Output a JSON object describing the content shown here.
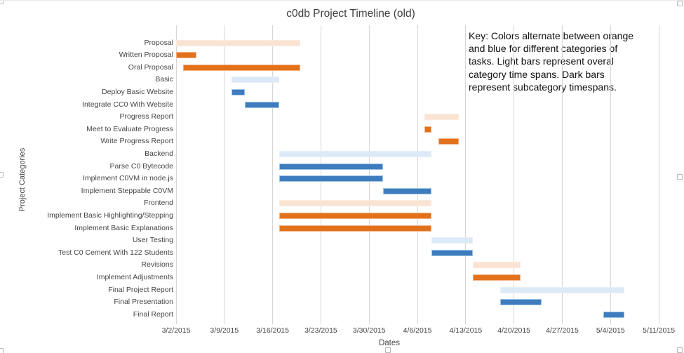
{
  "chart_data": {
    "type": "bar",
    "subtype": "gantt",
    "title": "c0db Project Timeline (old)",
    "xlabel": "Dates",
    "ylabel": "Project Categories",
    "annotation": "Key: Colors alternate between orange\nand blue for different categories of\ntasks. Light bars represent overal\ncategory time spans. Dark bars\nrepresent subcategory timespans.",
    "x_ticks": [
      "3/2/2015",
      "3/9/2015",
      "3/16/2015",
      "3/23/2015",
      "3/30/2015",
      "4/6/2015",
      "4/13/2015",
      "4/20/2015",
      "4/27/2015",
      "5/4/2015",
      "5/11/2015"
    ],
    "x_range": [
      "3/2/2015",
      "5/11/2015"
    ],
    "grid": "vertical-on",
    "legend_position": "none",
    "colors": {
      "light_orange": "#fae3d3",
      "dark_orange": "#e2711c",
      "light_blue": "#dce9f6",
      "dark_blue": "#3e7cbe"
    },
    "tasks": [
      {
        "label": "Proposal",
        "start": "3/2/2015",
        "end": "3/20/2015",
        "style": "light_orange"
      },
      {
        "label": "Written Proposal",
        "start": "3/2/2015",
        "end": "3/5/2015",
        "style": "dark_orange"
      },
      {
        "label": "Oral Proposal",
        "start": "3/3/2015",
        "end": "3/20/2015",
        "style": "dark_orange"
      },
      {
        "label": "Basic",
        "start": "3/10/2015",
        "end": "3/17/2015",
        "style": "light_blue"
      },
      {
        "label": "Deploy Basic Website",
        "start": "3/10/2015",
        "end": "3/12/2015",
        "style": "dark_blue"
      },
      {
        "label": "Integrate CC0 With Website",
        "start": "3/12/2015",
        "end": "3/17/2015",
        "style": "dark_blue"
      },
      {
        "label": "Progress Report",
        "start": "4/7/2015",
        "end": "4/12/2015",
        "style": "light_orange"
      },
      {
        "label": "Meet to Evaluate Progress",
        "start": "4/7/2015",
        "end": "4/8/2015",
        "style": "dark_orange"
      },
      {
        "label": "Write Progress Report",
        "start": "4/9/2015",
        "end": "4/12/2015",
        "style": "dark_orange"
      },
      {
        "label": "Backend",
        "start": "3/17/2015",
        "end": "4/8/2015",
        "style": "light_blue"
      },
      {
        "label": "Parse C0 Bytecode",
        "start": "3/17/2015",
        "end": "4/1/2015",
        "style": "dark_blue"
      },
      {
        "label": "Implement C0VM in node.js",
        "start": "3/17/2015",
        "end": "4/1/2015",
        "style": "dark_blue"
      },
      {
        "label": "Implement Steppable C0VM",
        "start": "4/1/2015",
        "end": "4/8/2015",
        "style": "dark_blue"
      },
      {
        "label": "Frontend",
        "start": "3/17/2015",
        "end": "4/8/2015",
        "style": "light_orange"
      },
      {
        "label": "Implement Basic Highlighting/Stepping",
        "start": "3/17/2015",
        "end": "4/8/2015",
        "style": "dark_orange"
      },
      {
        "label": "Implement Basic Explanations",
        "start": "3/17/2015",
        "end": "4/8/2015",
        "style": "dark_orange"
      },
      {
        "label": "User Testing",
        "start": "4/8/2015",
        "end": "4/14/2015",
        "style": "light_blue"
      },
      {
        "label": "Test C0 Cement With 122 Students",
        "start": "4/8/2015",
        "end": "4/14/2015",
        "style": "dark_blue"
      },
      {
        "label": "Revisions",
        "start": "4/14/2015",
        "end": "4/21/2015",
        "style": "light_orange"
      },
      {
        "label": "Implement Adjustments",
        "start": "4/14/2015",
        "end": "4/21/2015",
        "style": "dark_orange"
      },
      {
        "label": "Final Project Report",
        "start": "4/18/2015",
        "end": "5/6/2015",
        "style": "light_blue"
      },
      {
        "label": "Final Presentation",
        "start": "4/18/2015",
        "end": "4/24/2015",
        "style": "dark_blue"
      },
      {
        "label": "Final Report",
        "start": "5/3/2015",
        "end": "5/6/2015",
        "style": "dark_blue"
      }
    ]
  }
}
